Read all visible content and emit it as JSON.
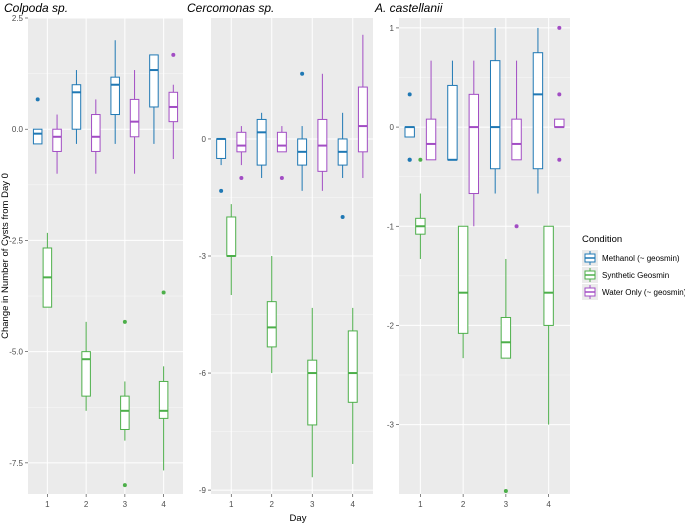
{
  "colors": {
    "methanol": "#1f78b4",
    "synthetic": "#4daf4a",
    "water": "#a24dc4",
    "panel_bg": "#ebebeb",
    "grid": "#ffffff"
  },
  "chart_data": {
    "type": "boxplot",
    "xlabel": "Day",
    "ylabel": "Change in Number of Cysts from Day 0",
    "legend": {
      "title": "Condition",
      "placement": "right",
      "entries": [
        {
          "key": "methanol",
          "label": "Methanol (~ geosmin)"
        },
        {
          "key": "synthetic",
          "label": "Synthetic Geosmin"
        },
        {
          "key": "water",
          "label": "Water Only (~ geosmin)"
        }
      ]
    },
    "categories": [
      "1",
      "2",
      "3",
      "4"
    ],
    "panels": [
      {
        "title": "Colpoda sp.",
        "ylim": [
          -8.2,
          2.5
        ],
        "yticks": [
          2.5,
          0.0,
          -2.5,
          -5.0,
          -7.5
        ],
        "ytick_labels": [
          "2.5",
          "0.0",
          "-2.5",
          "-5.0",
          "-7.5"
        ],
        "series": {
          "methanol": [
            {
              "day": 1,
              "lo": -0.33,
              "q1": -0.33,
              "med": -0.1,
              "q3": 0.0,
              "hi": 0.0,
              "out": [
                0.67
              ]
            },
            {
              "day": 2,
              "lo": -0.33,
              "q1": 0.0,
              "med": 0.83,
              "q3": 1.0,
              "hi": 1.33,
              "out": []
            },
            {
              "day": 3,
              "lo": -0.33,
              "q1": 0.33,
              "med": 1.0,
              "q3": 1.17,
              "hi": 2.0,
              "out": []
            },
            {
              "day": 4,
              "lo": -0.33,
              "q1": 0.5,
              "med": 1.33,
              "q3": 1.67,
              "hi": 1.67,
              "out": []
            }
          ],
          "synthetic": [
            {
              "day": 1,
              "lo": -4.0,
              "q1": -4.0,
              "med": -3.33,
              "q3": -2.67,
              "hi": -2.33,
              "out": []
            },
            {
              "day": 2,
              "lo": -6.33,
              "q1": -6.0,
              "med": -5.17,
              "q3": -5.0,
              "hi": -4.33,
              "out": []
            },
            {
              "day": 3,
              "lo": -7.0,
              "q1": -6.75,
              "med": -6.33,
              "q3": -6.0,
              "hi": -5.67,
              "out": [
                -8.0,
                -4.33
              ]
            },
            {
              "day": 4,
              "lo": -7.67,
              "q1": -6.5,
              "med": -6.33,
              "q3": -5.67,
              "hi": -5.33,
              "out": [
                -3.67
              ]
            }
          ],
          "water": [
            {
              "day": 1,
              "lo": -1.0,
              "q1": -0.5,
              "med": -0.17,
              "q3": 0.0,
              "hi": 0.33,
              "out": []
            },
            {
              "day": 2,
              "lo": -1.0,
              "q1": -0.5,
              "med": -0.17,
              "q3": 0.33,
              "hi": 0.67,
              "out": []
            },
            {
              "day": 3,
              "lo": -1.0,
              "q1": -0.17,
              "med": 0.17,
              "q3": 0.67,
              "hi": 1.33,
              "out": []
            },
            {
              "day": 4,
              "lo": -0.67,
              "q1": 0.17,
              "med": 0.5,
              "q3": 0.83,
              "hi": 1.0,
              "out": [
                1.67
              ]
            }
          ]
        }
      },
      {
        "title": "Cercomonas sp.",
        "ylim": [
          -9.1,
          3.1
        ],
        "yticks": [
          0,
          -3,
          -6,
          -9
        ],
        "ytick_labels": [
          "0",
          "-3",
          "-6",
          "-9"
        ],
        "series": {
          "methanol": [
            {
              "day": 1,
              "lo": -0.67,
              "q1": -0.5,
              "med": 0.0,
              "q3": 0.0,
              "hi": 0.0,
              "out": [
                -1.33
              ]
            },
            {
              "day": 2,
              "lo": -1.0,
              "q1": -0.67,
              "med": 0.17,
              "q3": 0.5,
              "hi": 0.67,
              "out": []
            },
            {
              "day": 3,
              "lo": -1.33,
              "q1": -0.67,
              "med": -0.33,
              "q3": 0.0,
              "hi": 0.33,
              "out": [
                1.67
              ]
            },
            {
              "day": 4,
              "lo": -1.0,
              "q1": -0.67,
              "med": -0.33,
              "q3": 0.0,
              "hi": 0.67,
              "out": [
                -2.0
              ]
            }
          ],
          "synthetic": [
            {
              "day": 1,
              "lo": -4.0,
              "q1": -3.0,
              "med": -3.0,
              "q3": -2.0,
              "hi": -1.67,
              "out": []
            },
            {
              "day": 2,
              "lo": -6.0,
              "q1": -5.33,
              "med": -4.83,
              "q3": -4.17,
              "hi": -3.0,
              "out": []
            },
            {
              "day": 3,
              "lo": -8.67,
              "q1": -7.33,
              "med": -6.0,
              "q3": -5.67,
              "hi": -4.33,
              "out": []
            },
            {
              "day": 4,
              "lo": -8.33,
              "q1": -6.75,
              "med": -6.0,
              "q3": -4.92,
              "hi": -4.33,
              "out": []
            }
          ],
          "water": [
            {
              "day": 1,
              "lo": -0.67,
              "q1": -0.33,
              "med": -0.17,
              "q3": 0.17,
              "hi": 0.33,
              "out": [
                -1.0
              ]
            },
            {
              "day": 2,
              "lo": -0.33,
              "q1": -0.33,
              "med": -0.17,
              "q3": 0.17,
              "hi": 0.33,
              "out": [
                -1.0
              ]
            },
            {
              "day": 3,
              "lo": -1.33,
              "q1": -0.83,
              "med": -0.17,
              "q3": 0.5,
              "hi": 1.67,
              "out": []
            },
            {
              "day": 4,
              "lo": -1.0,
              "q1": -0.33,
              "med": 0.33,
              "q3": 1.33,
              "hi": 2.67,
              "out": []
            }
          ]
        }
      },
      {
        "title": "A. castellanii",
        "ylim": [
          -3.7,
          1.1
        ],
        "yticks": [
          1,
          0,
          -1,
          -2,
          -3
        ],
        "ytick_labels": [
          "1",
          "0",
          "-1",
          "-2",
          "-3"
        ],
        "series": {
          "methanol": [
            {
              "day": 1,
              "lo": -0.1,
              "q1": -0.1,
              "med": 0.0,
              "q3": 0.0,
              "hi": 0.0,
              "out": [
                0.33,
                -0.33,
                -0.33
              ]
            },
            {
              "day": 2,
              "lo": -0.33,
              "q1": -0.33,
              "med": -0.33,
              "q3": 0.42,
              "hi": 0.67,
              "out": []
            },
            {
              "day": 3,
              "lo": -0.67,
              "q1": -0.42,
              "med": 0.0,
              "q3": 0.67,
              "hi": 1.0,
              "out": []
            },
            {
              "day": 4,
              "lo": -0.67,
              "q1": -0.42,
              "med": 0.33,
              "q3": 0.75,
              "hi": 1.0,
              "out": []
            }
          ],
          "synthetic": [
            {
              "day": 1,
              "lo": -1.33,
              "q1": -1.08,
              "med": -1.0,
              "q3": -0.92,
              "hi": -0.67,
              "out": [
                -0.33
              ]
            },
            {
              "day": 2,
              "lo": -2.33,
              "q1": -2.08,
              "med": -1.67,
              "q3": -1.0,
              "hi": -1.0,
              "out": []
            },
            {
              "day": 3,
              "lo": -2.33,
              "q1": -2.33,
              "med": -2.17,
              "q3": -1.92,
              "hi": -1.33,
              "out": [
                -3.67
              ]
            },
            {
              "day": 4,
              "lo": -3.0,
              "q1": -2.0,
              "med": -1.67,
              "q3": -1.0,
              "hi": -1.0,
              "out": []
            }
          ],
          "water": [
            {
              "day": 1,
              "lo": -0.33,
              "q1": -0.33,
              "med": -0.17,
              "q3": 0.08,
              "hi": 0.67,
              "out": []
            },
            {
              "day": 2,
              "lo": -1.0,
              "q1": -0.67,
              "med": 0.0,
              "q3": 0.33,
              "hi": 0.67,
              "out": []
            },
            {
              "day": 3,
              "lo": -0.33,
              "q1": -0.33,
              "med": -0.17,
              "q3": 0.08,
              "hi": 0.67,
              "out": [
                -1.0
              ]
            },
            {
              "day": 4,
              "lo": 0.0,
              "q1": 0.0,
              "med": 0.0,
              "q3": 0.08,
              "hi": 0.08,
              "out": [
                1.0,
                0.33,
                -0.33
              ]
            }
          ]
        }
      }
    ]
  }
}
